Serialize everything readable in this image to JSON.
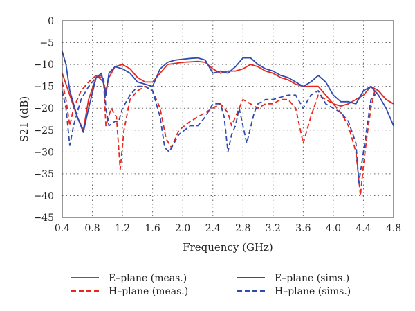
{
  "chart_data": {
    "type": "line",
    "xlabel": "Frequency (GHz)",
    "ylabel": "S21 (dB)",
    "xlim": [
      0.4,
      4.8
    ],
    "ylim": [
      -45,
      0
    ],
    "x_ticks": [
      "0.4",
      "0.8",
      "1.2",
      "1.6",
      "2.0",
      "2.4",
      "2.8",
      "3.2",
      "3.6",
      "4.0",
      "4.4",
      "4.8"
    ],
    "y_ticks": [
      "0",
      "−5",
      "−10",
      "−15",
      "−20",
      "−25",
      "−30",
      "−35",
      "−40",
      "−45"
    ],
    "grid": "dotted",
    "legend_position": "bottom",
    "colors": {
      "meas": "#e8261c",
      "sims": "#2f4bb0"
    },
    "series": [
      {
        "name": "E–plane (meas.)",
        "color": "#e8261c",
        "dash": "solid",
        "points": [
          [
            0.4,
            -12
          ],
          [
            0.5,
            -17
          ],
          [
            0.6,
            -22
          ],
          [
            0.68,
            -25
          ],
          [
            0.75,
            -18
          ],
          [
            0.85,
            -13
          ],
          [
            0.92,
            -12.5
          ],
          [
            0.98,
            -16
          ],
          [
            1.02,
            -13
          ],
          [
            1.1,
            -10.5
          ],
          [
            1.2,
            -10
          ],
          [
            1.3,
            -11
          ],
          [
            1.4,
            -13
          ],
          [
            1.5,
            -14
          ],
          [
            1.6,
            -14
          ],
          [
            1.7,
            -12
          ],
          [
            1.8,
            -10
          ],
          [
            2.0,
            -9.5
          ],
          [
            2.2,
            -9.3
          ],
          [
            2.3,
            -9.5
          ],
          [
            2.4,
            -11
          ],
          [
            2.5,
            -12
          ],
          [
            2.6,
            -11.5
          ],
          [
            2.7,
            -11.5
          ],
          [
            2.8,
            -11
          ],
          [
            2.9,
            -10
          ],
          [
            3.0,
            -10.5
          ],
          [
            3.1,
            -11.5
          ],
          [
            3.2,
            -12
          ],
          [
            3.3,
            -13
          ],
          [
            3.4,
            -13.5
          ],
          [
            3.5,
            -14.5
          ],
          [
            3.6,
            -15
          ],
          [
            3.7,
            -15
          ],
          [
            3.8,
            -15
          ],
          [
            3.9,
            -17
          ],
          [
            4.0,
            -19
          ],
          [
            4.1,
            -19.5
          ],
          [
            4.2,
            -19
          ],
          [
            4.3,
            -18
          ],
          [
            4.4,
            -17
          ],
          [
            4.5,
            -15
          ],
          [
            4.6,
            -16
          ],
          [
            4.7,
            -18
          ],
          [
            4.8,
            -19
          ]
        ]
      },
      {
        "name": "H–plane (meas.)",
        "color": "#e8261c",
        "dash": "dashed",
        "points": [
          [
            0.4,
            -14
          ],
          [
            0.45,
            -18
          ],
          [
            0.5,
            -24
          ],
          [
            0.55,
            -20
          ],
          [
            0.65,
            -16
          ],
          [
            0.75,
            -14
          ],
          [
            0.85,
            -12.5
          ],
          [
            0.95,
            -14
          ],
          [
            0.98,
            -24
          ],
          [
            1.05,
            -20
          ],
          [
            1.12,
            -22
          ],
          [
            1.17,
            -34
          ],
          [
            1.22,
            -25
          ],
          [
            1.3,
            -18
          ],
          [
            1.4,
            -16
          ],
          [
            1.5,
            -15
          ],
          [
            1.6,
            -16
          ],
          [
            1.7,
            -20
          ],
          [
            1.78,
            -27
          ],
          [
            1.85,
            -29
          ],
          [
            1.95,
            -25
          ],
          [
            2.1,
            -23
          ],
          [
            2.3,
            -21
          ],
          [
            2.4,
            -20
          ],
          [
            2.5,
            -19
          ],
          [
            2.6,
            -21
          ],
          [
            2.65,
            -24
          ],
          [
            2.7,
            -22
          ],
          [
            2.8,
            -18
          ],
          [
            2.9,
            -19
          ],
          [
            3.0,
            -20
          ],
          [
            3.1,
            -19
          ],
          [
            3.2,
            -19
          ],
          [
            3.3,
            -18
          ],
          [
            3.4,
            -18
          ],
          [
            3.5,
            -20
          ],
          [
            3.6,
            -28
          ],
          [
            3.7,
            -22
          ],
          [
            3.8,
            -17
          ],
          [
            3.9,
            -18
          ],
          [
            4.0,
            -19
          ],
          [
            4.1,
            -21
          ],
          [
            4.2,
            -24
          ],
          [
            4.3,
            -30
          ],
          [
            4.36,
            -40
          ],
          [
            4.4,
            -33
          ],
          [
            4.45,
            -26
          ],
          [
            4.5,
            -20
          ],
          [
            4.55,
            -16
          ],
          [
            4.6,
            -16
          ],
          [
            4.7,
            -18
          ],
          [
            4.8,
            -19
          ]
        ]
      },
      {
        "name": "E–plane (sims.)",
        "color": "#2f4bb0",
        "dash": "solid",
        "points": [
          [
            0.4,
            -7
          ],
          [
            0.45,
            -10
          ],
          [
            0.5,
            -16
          ],
          [
            0.6,
            -22
          ],
          [
            0.68,
            -25.5
          ],
          [
            0.75,
            -20
          ],
          [
            0.85,
            -13
          ],
          [
            0.92,
            -12
          ],
          [
            0.98,
            -17
          ],
          [
            1.02,
            -12
          ],
          [
            1.1,
            -10.5
          ],
          [
            1.2,
            -11
          ],
          [
            1.3,
            -12
          ],
          [
            1.4,
            -14
          ],
          [
            1.5,
            -14.5
          ],
          [
            1.6,
            -15
          ],
          [
            1.7,
            -11
          ],
          [
            1.8,
            -9.5
          ],
          [
            1.9,
            -9
          ],
          [
            2.0,
            -8.8
          ],
          [
            2.1,
            -8.6
          ],
          [
            2.2,
            -8.5
          ],
          [
            2.3,
            -9
          ],
          [
            2.4,
            -12
          ],
          [
            2.5,
            -11.5
          ],
          [
            2.6,
            -12
          ],
          [
            2.7,
            -10.5
          ],
          [
            2.8,
            -8.5
          ],
          [
            2.9,
            -8.5
          ],
          [
            3.0,
            -10
          ],
          [
            3.1,
            -11
          ],
          [
            3.2,
            -11.5
          ],
          [
            3.3,
            -12.5
          ],
          [
            3.4,
            -13
          ],
          [
            3.5,
            -14
          ],
          [
            3.6,
            -15
          ],
          [
            3.7,
            -14
          ],
          [
            3.8,
            -12.5
          ],
          [
            3.9,
            -14
          ],
          [
            4.0,
            -17
          ],
          [
            4.1,
            -18.5
          ],
          [
            4.2,
            -18.5
          ],
          [
            4.3,
            -19
          ],
          [
            4.4,
            -16
          ],
          [
            4.5,
            -15
          ],
          [
            4.6,
            -17
          ],
          [
            4.7,
            -20
          ],
          [
            4.8,
            -24
          ]
        ]
      },
      {
        "name": "H–plane (sims.)",
        "color": "#2f4bb0",
        "dash": "dashed",
        "points": [
          [
            0.4,
            -16
          ],
          [
            0.45,
            -20
          ],
          [
            0.5,
            -28.5
          ],
          [
            0.55,
            -24
          ],
          [
            0.65,
            -18
          ],
          [
            0.75,
            -15
          ],
          [
            0.85,
            -13
          ],
          [
            0.95,
            -13
          ],
          [
            0.98,
            -20
          ],
          [
            1.02,
            -24
          ],
          [
            1.1,
            -23
          ],
          [
            1.15,
            -23
          ],
          [
            1.2,
            -20
          ],
          [
            1.3,
            -17
          ],
          [
            1.4,
            -15
          ],
          [
            1.5,
            -15
          ],
          [
            1.6,
            -16
          ],
          [
            1.7,
            -22
          ],
          [
            1.76,
            -29
          ],
          [
            1.82,
            -30
          ],
          [
            1.95,
            -26
          ],
          [
            2.1,
            -24
          ],
          [
            2.2,
            -24
          ],
          [
            2.3,
            -22
          ],
          [
            2.4,
            -19
          ],
          [
            2.5,
            -19
          ],
          [
            2.55,
            -22
          ],
          [
            2.6,
            -30
          ],
          [
            2.65,
            -26
          ],
          [
            2.7,
            -24
          ],
          [
            2.75,
            -20
          ],
          [
            2.85,
            -28
          ],
          [
            2.95,
            -21
          ],
          [
            3.0,
            -19
          ],
          [
            3.1,
            -18
          ],
          [
            3.2,
            -18
          ],
          [
            3.3,
            -17.5
          ],
          [
            3.4,
            -17
          ],
          [
            3.5,
            -17
          ],
          [
            3.6,
            -20
          ],
          [
            3.7,
            -17
          ],
          [
            3.8,
            -16
          ],
          [
            3.9,
            -19
          ],
          [
            4.0,
            -20
          ],
          [
            4.1,
            -21
          ],
          [
            4.2,
            -23
          ],
          [
            4.3,
            -28
          ],
          [
            4.34,
            -37
          ],
          [
            4.4,
            -30
          ],
          [
            4.45,
            -24
          ],
          [
            4.5,
            -18
          ],
          [
            4.6,
            -16
          ],
          [
            4.7,
            -18
          ],
          [
            4.8,
            -19
          ]
        ]
      }
    ]
  }
}
